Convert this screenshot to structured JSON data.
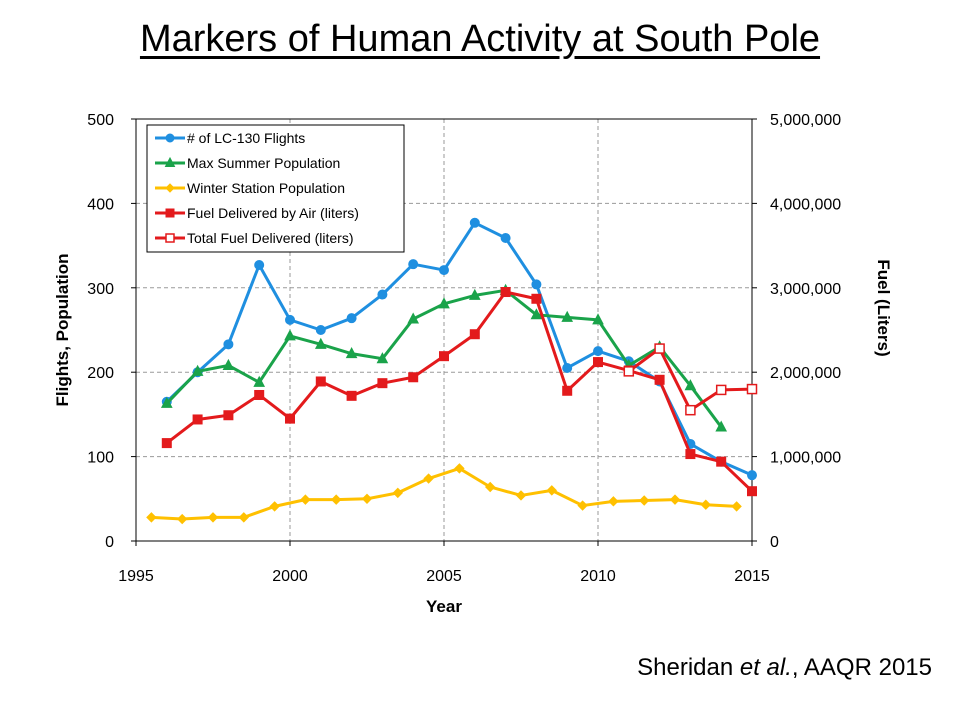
{
  "slide": {
    "title": "Markers of Human Activity at South Pole",
    "citation_authors": "Sheridan ",
    "citation_etal": "et al.",
    "citation_rest": ", AAQR 2015"
  },
  "chart_data": {
    "type": "line",
    "title": "",
    "xlabel": "Year",
    "ylabel_left": "Flights, Population",
    "ylabel_right": "Fuel (Liters)",
    "xlim": [
      1995,
      2015
    ],
    "ylim_left": [
      0,
      500
    ],
    "ylim_right": [
      0,
      5000000
    ],
    "x_ticks": [
      "1995",
      "2000",
      "2005",
      "2010",
      "2015"
    ],
    "x_tick_values": [
      1995,
      2000,
      2005,
      2010,
      2015
    ],
    "y_left_ticks": [
      "0",
      "100",
      "200",
      "300",
      "400",
      "500"
    ],
    "y_left_tick_values": [
      0,
      100,
      200,
      300,
      400,
      500
    ],
    "y_right_ticks": [
      "0",
      "1,000,000",
      "2,000,000",
      "3,000,000",
      "4,000,000",
      "5,000,000"
    ],
    "y_right_tick_values": [
      0,
      1000000,
      2000000,
      3000000,
      4000000,
      5000000
    ],
    "grid": "dashed horizontal and vertical",
    "legend_position": "top-left",
    "series": [
      {
        "name": "# of LC-130 Flights",
        "axis": "left",
        "color": "#1f8fe0",
        "marker": "circle",
        "filled": true,
        "points": [
          [
            1996,
            165
          ],
          [
            1997,
            200
          ],
          [
            1998,
            233
          ],
          [
            1999,
            327
          ],
          [
            2000,
            262
          ],
          [
            2001,
            250
          ],
          [
            2002,
            264
          ],
          [
            2003,
            292
          ],
          [
            2004,
            328
          ],
          [
            2005,
            321
          ],
          [
            2006,
            377
          ],
          [
            2007,
            359
          ],
          [
            2008,
            304
          ],
          [
            2009,
            205
          ],
          [
            2010,
            225
          ],
          [
            2011,
            213
          ],
          [
            2012,
            189
          ],
          [
            2013,
            115
          ],
          [
            2014,
            94
          ],
          [
            2015,
            78
          ]
        ]
      },
      {
        "name": "Max Summer Population",
        "axis": "left",
        "color": "#1aa34a",
        "marker": "triangle",
        "filled": true,
        "points": [
          [
            1996,
            163
          ],
          [
            1997,
            201
          ],
          [
            1998,
            208
          ],
          [
            1999,
            188
          ],
          [
            2000,
            243
          ],
          [
            2001,
            233
          ],
          [
            2002,
            222
          ],
          [
            2003,
            216
          ],
          [
            2004,
            263
          ],
          [
            2005,
            281
          ],
          [
            2006,
            291
          ],
          [
            2007,
            297
          ],
          [
            2008,
            268
          ],
          [
            2009,
            265
          ],
          [
            2010,
            262
          ],
          [
            2011,
            208
          ],
          [
            2012,
            230
          ],
          [
            2013,
            184
          ],
          [
            2014,
            135
          ]
        ]
      },
      {
        "name": "Winter Station Population",
        "axis": "left",
        "color": "#ffc000",
        "marker": "diamond",
        "filled": true,
        "points": [
          [
            1995.5,
            28
          ],
          [
            1996.5,
            26
          ],
          [
            1997.5,
            28
          ],
          [
            1998.5,
            28
          ],
          [
            1999.5,
            41
          ],
          [
            2000.5,
            49
          ],
          [
            2001.5,
            49
          ],
          [
            2002.5,
            50
          ],
          [
            2003.5,
            57
          ],
          [
            2004.5,
            74
          ],
          [
            2005.5,
            86
          ],
          [
            2006.5,
            64
          ],
          [
            2007.5,
            54
          ],
          [
            2008.5,
            60
          ],
          [
            2009.5,
            42
          ],
          [
            2010.5,
            47
          ],
          [
            2011.5,
            48
          ],
          [
            2012.5,
            49
          ],
          [
            2013.5,
            43
          ],
          [
            2014.5,
            41
          ]
        ]
      },
      {
        "name": "Fuel Delivered by Air (liters)",
        "axis": "right",
        "color": "#e31a1c",
        "marker": "square",
        "filled": true,
        "points": [
          [
            1996,
            1160000
          ],
          [
            1997,
            1440000
          ],
          [
            1998,
            1490000
          ],
          [
            1999,
            1730000
          ],
          [
            2000,
            1450000
          ],
          [
            2001,
            1890000
          ],
          [
            2002,
            1720000
          ],
          [
            2003,
            1870000
          ],
          [
            2004,
            1940000
          ],
          [
            2005,
            2190000
          ],
          [
            2006,
            2450000
          ],
          [
            2007,
            2950000
          ],
          [
            2008,
            2870000
          ],
          [
            2009,
            1780000
          ],
          [
            2010,
            2120000
          ],
          [
            2011,
            2020000
          ],
          [
            2012,
            1910000
          ],
          [
            2013,
            1030000
          ],
          [
            2014,
            940000
          ],
          [
            2015,
            590000
          ]
        ]
      },
      {
        "name": "Total Fuel Delivered (liters)",
        "axis": "right",
        "color": "#e31a1c",
        "marker": "square",
        "filled": false,
        "points": [
          [
            2011,
            2010000
          ],
          [
            2012,
            2280000
          ],
          [
            2013,
            1550000
          ],
          [
            2014,
            1790000
          ],
          [
            2015,
            1800000
          ]
        ]
      }
    ]
  }
}
